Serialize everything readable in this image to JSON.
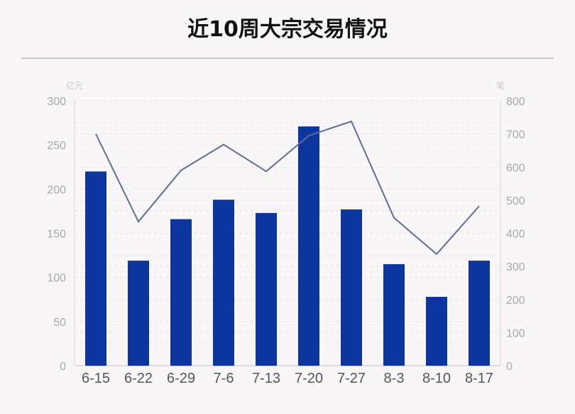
{
  "title": "近10周大宗交易情况",
  "chart_data": {
    "type": "bar",
    "title": "近10周大宗交易情况",
    "categories": [
      "6-15",
      "6-22",
      "6-29",
      "7-6",
      "7-13",
      "7-20",
      "7-27",
      "8-3",
      "8-10",
      "8-17"
    ],
    "y_left_unit": "亿元",
    "y_right_unit": "笔",
    "ylim_left": [
      0,
      300
    ],
    "ylim_right": [
      0,
      800
    ],
    "yticks_left": [
      "0",
      "50",
      "100",
      "150",
      "200",
      "250",
      "300"
    ],
    "yticks_right": [
      "0",
      "100",
      "200",
      "300",
      "400",
      "500",
      "600",
      "700",
      "800"
    ],
    "grid": true,
    "series": [
      {
        "type": "bar",
        "axis": "left",
        "color": "#0c35a0",
        "values": [
          220,
          119,
          166,
          188,
          173,
          271,
          177,
          115,
          78,
          119
        ]
      },
      {
        "type": "line",
        "axis": "right",
        "color": "#5a6e9c",
        "values": [
          700,
          435,
          590,
          668,
          587,
          695,
          738,
          447,
          337,
          482
        ]
      }
    ]
  }
}
